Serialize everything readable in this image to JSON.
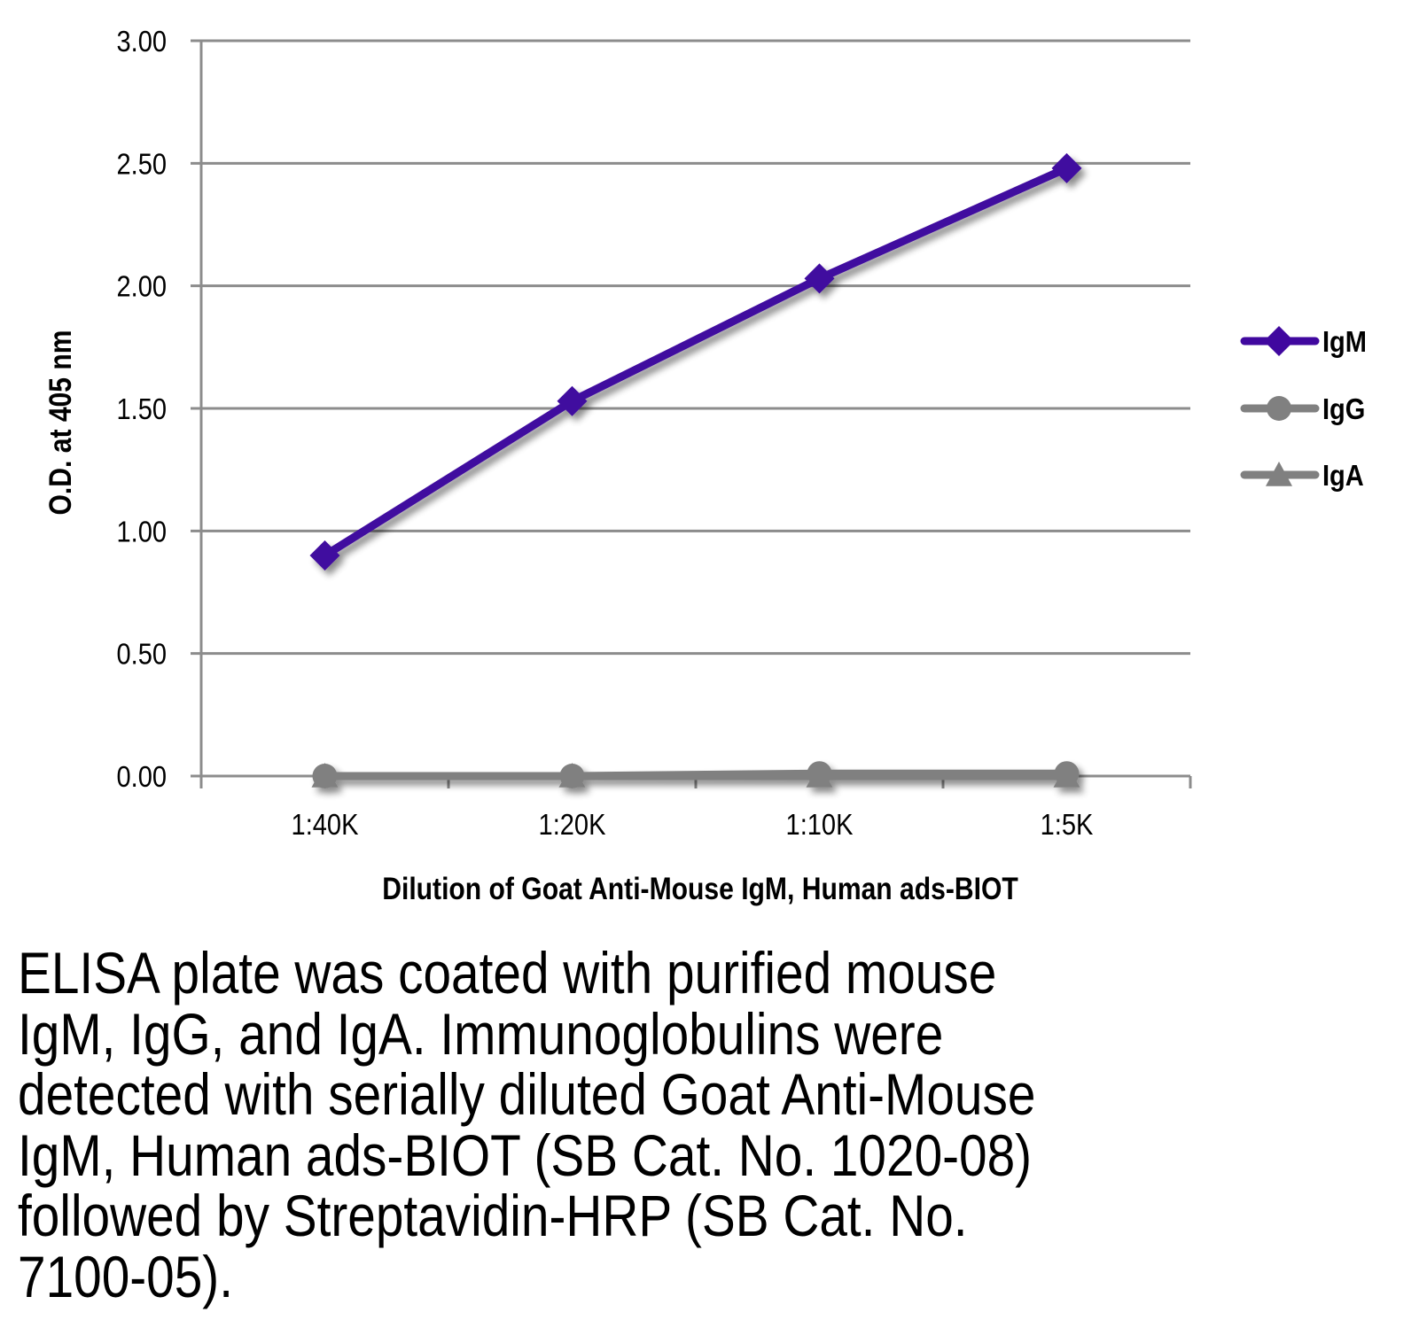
{
  "chart_data": {
    "type": "line",
    "title": "",
    "xlabel": "Dilution of Goat Anti-Mouse IgM, Human ads-BIOT",
    "ylabel": "O.D. at 405 nm",
    "categories": [
      "1:40K",
      "1:20K",
      "1:10K",
      "1:5K"
    ],
    "ylim": [
      0,
      3.0
    ],
    "yticks": [
      "0.00",
      "0.50",
      "1.00",
      "1.50",
      "2.00",
      "2.50",
      "3.00"
    ],
    "ytick_values": [
      0,
      0.5,
      1.0,
      1.5,
      2.0,
      2.5,
      3.0
    ],
    "grid": true,
    "legend_position": "right",
    "series": [
      {
        "name": "IgM",
        "values": [
          0.9,
          1.53,
          2.03,
          2.48
        ],
        "color": "#40089f",
        "marker": "diamond"
      },
      {
        "name": "IgG",
        "values": [
          0.0,
          0.0,
          0.01,
          0.01
        ],
        "color": "#808080",
        "marker": "circle"
      },
      {
        "name": "IgA",
        "values": [
          0.0,
          0.0,
          0.0,
          0.0
        ],
        "color": "#808080",
        "marker": "triangle"
      }
    ]
  },
  "caption": {
    "lines": [
      "ELISA plate was coated with purified mouse",
      "IgM, IgG, and IgA.  Immunoglobulins were",
      "detected with serially diluted Goat Anti-Mouse",
      "IgM, Human ads-BIOT (SB Cat. No. 1020-08)",
      "followed by Streptavidin-HRP (SB Cat. No.",
      "7100-05)."
    ]
  },
  "colors": {
    "grid": "#8c8c8c",
    "axis": "#8c8c8c"
  }
}
